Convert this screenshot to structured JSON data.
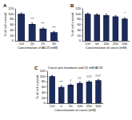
{
  "chart_data": [
    {
      "type": "bar",
      "title": "A",
      "x_label": "Concentration of AlCl3 (mM)",
      "y_label": "% of cell survival",
      "categories": [
        "Ctrl",
        "20",
        "25",
        "30"
      ],
      "values": [
        100,
        62,
        45,
        32
      ],
      "errors": [
        3,
        4,
        3,
        3
      ],
      "annotations": [
        {
          "category": "20",
          "text": "***"
        },
        {
          "category": "25",
          "text": "***"
        },
        {
          "category": "30",
          "text": "***"
        }
      ],
      "color": "#1c2b5a",
      "ylim": [
        0,
        120
      ],
      "yticks": [
        0,
        20,
        40,
        60,
        80,
        100,
        120
      ]
    },
    {
      "type": "bar",
      "title": "B",
      "x_label": "Concentration of crocin (mM)",
      "y_label": "% of cell survival",
      "categories": [
        "Ctrl",
        "50",
        "100",
        "250",
        "500"
      ],
      "values": [
        100,
        97,
        95,
        90,
        82
      ],
      "errors": [
        3,
        3,
        4,
        3,
        4
      ],
      "annotations": [
        {
          "category": "500",
          "text": "*"
        }
      ],
      "color": "#1c2b5a",
      "ylim": [
        0,
        120
      ],
      "yticks": [
        0,
        20,
        40,
        60,
        80,
        100,
        120
      ]
    },
    {
      "type": "bar",
      "title": "C",
      "subtitle": "Crocin pre-treatment and 20 mM AlCl3",
      "x_label": "Concentration of crocin (mM)",
      "y_label": "% of cell survival",
      "categories": [
        "Ctrl",
        "0",
        "50",
        "100",
        "250",
        "500"
      ],
      "values": [
        100,
        60,
        68,
        75,
        80,
        85
      ],
      "errors": [
        3,
        4,
        3,
        4,
        3,
        3
      ],
      "annotations": [
        {
          "category": "0",
          "text": "***"
        },
        {
          "category": "50",
          "text": "#"
        },
        {
          "category": "100",
          "text": "##"
        },
        {
          "category": "250",
          "text": "###"
        },
        {
          "category": "500",
          "text": "###"
        }
      ],
      "color": "#1c2b5a",
      "ylim": [
        0,
        120
      ],
      "yticks": [
        0,
        20,
        40,
        60,
        80,
        100,
        120
      ]
    }
  ]
}
